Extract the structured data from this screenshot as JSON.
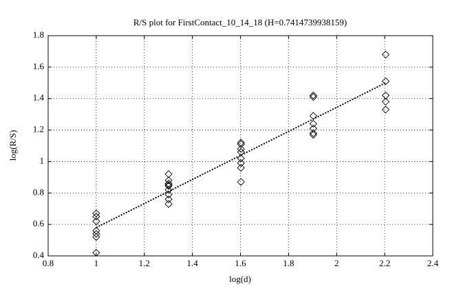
{
  "chart_data": {
    "type": "scatter",
    "title": "R/S plot for FirstContact_10_14_18 (H=0.7414739938159)",
    "x_label": "log(d)",
    "y_label": "log(R/S)",
    "xlim": [
      0.8,
      2.4
    ],
    "xticks": [
      0.8,
      1,
      1.2,
      1.4,
      1.6,
      1.8,
      2,
      2.2,
      2.4
    ],
    "ylim": [
      0.4,
      1.8
    ],
    "yticks": [
      0.4,
      0.6,
      0.8,
      1,
      1.2,
      1.4,
      1.6,
      1.8
    ],
    "grid": true,
    "color": "#000000",
    "series": [
      {
        "color": "#000000",
        "x": [
          1,
          1,
          1,
          1,
          1,
          1,
          1,
          1.301,
          1.301,
          1.301,
          1.301,
          1.301,
          1.301,
          1.301,
          1.301,
          1.301,
          1.602,
          1.602,
          1.602,
          1.602,
          1.602,
          1.602,
          1.602,
          1.602,
          1.903,
          1.903,
          1.903,
          1.903,
          1.903,
          1.903,
          1.903,
          2.204,
          2.204,
          2.204,
          2.204,
          2.204
        ],
        "values": [
          0.42,
          0.52,
          0.54,
          0.56,
          0.62,
          0.65,
          0.67,
          0.92,
          0.88,
          0.86,
          0.85,
          0.845,
          0.82,
          0.79,
          0.76,
          0.73,
          1.12,
          1.11,
          1.08,
          1.06,
          1.02,
          0.99,
          0.96,
          0.87,
          1.42,
          1.41,
          1.29,
          1.24,
          1.21,
          1.18,
          1.17,
          1.68,
          1.51,
          1.42,
          1.38,
          1.33
        ]
      }
    ],
    "fit": {
      "x": [
        1,
        2.204
      ],
      "values": [
        0.58,
        1.5
      ]
    }
  }
}
